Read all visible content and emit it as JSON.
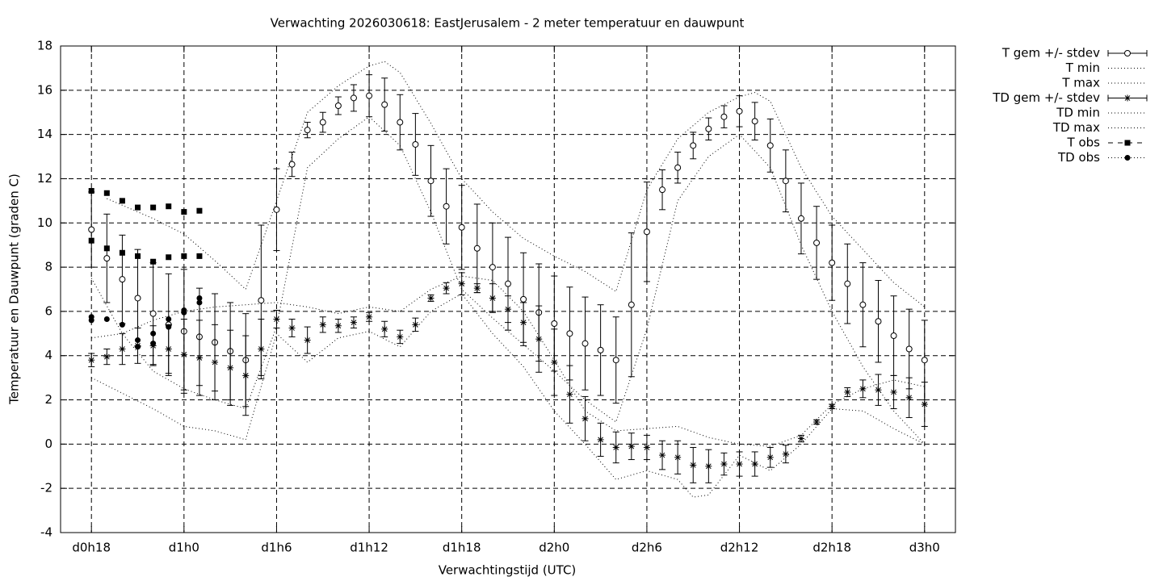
{
  "chart_data": {
    "type": "errorbar",
    "title": "Verwachting 2026030618: EastJerusalem - 2 meter temperatuur en dauwpunt",
    "xlabel": "Verwachtingstijd (UTC)",
    "ylabel": "Temperatuur en Dauwpunt (graden C)",
    "xlim": [
      -2,
      56
    ],
    "xticks": [
      {
        "value": 0,
        "label": "d0h18"
      },
      {
        "value": 6,
        "label": "d1h0"
      },
      {
        "value": 12,
        "label": "d1h6"
      },
      {
        "value": 18,
        "label": "d1h12"
      },
      {
        "value": 24,
        "label": "d1h18"
      },
      {
        "value": 30,
        "label": "d2h0"
      },
      {
        "value": 36,
        "label": "d2h6"
      },
      {
        "value": 42,
        "label": "d2h12"
      },
      {
        "value": 48,
        "label": "d2h18"
      },
      {
        "value": 54,
        "label": "d3h0"
      }
    ],
    "ylim": [
      -4,
      18
    ],
    "yticks": [
      -4,
      -2,
      0,
      2,
      4,
      6,
      8,
      10,
      12,
      14,
      16,
      18
    ],
    "grid": true,
    "legend": "outside-right",
    "series": [
      {
        "name": "T gem +/- stdev",
        "style": "errorbar",
        "marker": "circle",
        "color": "#000000",
        "x": [
          0,
          1,
          2,
          3,
          4,
          5,
          6,
          7,
          8,
          9,
          10,
          11,
          12,
          13,
          14,
          15,
          16,
          17,
          18,
          19,
          20,
          21,
          22,
          23,
          24,
          25,
          26,
          27,
          28,
          29,
          30,
          31,
          32,
          33,
          34,
          35,
          36,
          37,
          38,
          39,
          40,
          41,
          42,
          43,
          44,
          45,
          46,
          47,
          48,
          49,
          50,
          51,
          52,
          53,
          54
        ],
        "values": [
          9.7,
          8.4,
          7.45,
          6.6,
          5.9,
          5.4,
          5.1,
          4.85,
          4.6,
          4.2,
          3.8,
          6.5,
          10.6,
          12.65,
          14.2,
          14.55,
          15.3,
          15.65,
          15.75,
          15.35,
          14.55,
          13.55,
          11.9,
          10.75,
          9.8,
          8.85,
          8.0,
          7.25,
          6.55,
          5.95,
          5.45,
          5.0,
          4.55,
          4.25,
          3.8,
          6.3,
          9.6,
          11.5,
          12.5,
          13.5,
          14.25,
          14.8,
          15.05,
          14.6,
          13.5,
          11.9,
          10.2,
          9.1,
          8.2,
          7.25,
          6.3,
          5.55,
          4.9,
          4.3,
          3.8
        ],
        "errors": [
          1.7,
          2.0,
          2.0,
          2.2,
          2.3,
          2.3,
          2.8,
          2.2,
          2.2,
          2.2,
          2.1,
          3.4,
          1.85,
          0.55,
          0.35,
          0.45,
          0.4,
          0.6,
          0.95,
          1.2,
          1.25,
          1.4,
          1.6,
          1.7,
          1.9,
          2.0,
          2.0,
          2.1,
          2.1,
          2.2,
          2.15,
          2.1,
          2.1,
          2.05,
          1.95,
          3.25,
          2.25,
          0.9,
          0.7,
          0.6,
          0.5,
          0.5,
          0.7,
          0.85,
          1.2,
          1.4,
          1.6,
          1.65,
          1.7,
          1.8,
          1.9,
          1.85,
          1.8,
          1.8,
          1.8
        ]
      },
      {
        "name": "T min",
        "style": "dotted",
        "color": "#000000",
        "x": [
          0,
          2,
          4,
          6,
          8,
          10,
          12,
          14,
          16,
          18,
          20,
          22,
          24,
          26,
          28,
          30,
          32,
          34,
          36,
          38,
          40,
          42,
          44,
          46,
          48,
          50,
          52,
          54
        ],
        "values": [
          7.5,
          5.0,
          3.3,
          2.5,
          2.0,
          1.6,
          5.3,
          12.5,
          13.8,
          14.8,
          13.5,
          10.5,
          7.0,
          5.7,
          4.5,
          3.3,
          2.0,
          1.0,
          5.2,
          11.0,
          13.0,
          14.0,
          12.5,
          9.0,
          6.0,
          3.5,
          1.5,
          0.0
        ]
      },
      {
        "name": "T max",
        "style": "dotted",
        "color": "#000000",
        "x": [
          1,
          2,
          4,
          6,
          8,
          10,
          12,
          14,
          16,
          18,
          19,
          20,
          22,
          24,
          26,
          28,
          30,
          32,
          34,
          36,
          38,
          40,
          42,
          43,
          44,
          46,
          48,
          50,
          52,
          54
        ],
        "values": [
          11.1,
          10.8,
          10.2,
          9.5,
          8.3,
          7.0,
          11.0,
          15.0,
          16.2,
          17.1,
          17.3,
          16.8,
          14.5,
          12.0,
          10.5,
          9.3,
          8.5,
          7.8,
          6.9,
          11.5,
          13.8,
          15.0,
          15.7,
          15.9,
          15.5,
          12.5,
          10.3,
          8.8,
          7.3,
          6.2
        ]
      },
      {
        "name": "TD gem +/- stdev",
        "style": "errorbar",
        "marker": "star",
        "color": "#000000",
        "x": [
          0,
          1,
          2,
          3,
          4,
          5,
          6,
          7,
          8,
          9,
          10,
          11,
          12,
          13,
          14,
          15,
          16,
          17,
          18,
          19,
          20,
          21,
          22,
          23,
          24,
          25,
          26,
          27,
          28,
          29,
          30,
          31,
          32,
          33,
          34,
          35,
          36,
          37,
          38,
          39,
          40,
          41,
          42,
          43,
          44,
          45,
          46,
          47,
          48,
          49,
          50,
          51,
          52,
          53,
          54
        ],
        "values": [
          3.8,
          3.95,
          4.3,
          4.45,
          4.45,
          4.3,
          4.05,
          3.9,
          3.7,
          3.45,
          3.1,
          4.3,
          5.65,
          5.25,
          4.7,
          5.4,
          5.35,
          5.5,
          5.75,
          5.2,
          4.85,
          5.4,
          6.6,
          7.05,
          7.25,
          7.05,
          6.6,
          6.1,
          5.5,
          4.75,
          3.7,
          2.25,
          1.15,
          0.2,
          -0.15,
          -0.1,
          -0.15,
          -0.5,
          -0.6,
          -0.95,
          -1.0,
          -0.9,
          -0.9,
          -0.9,
          -0.6,
          -0.45,
          0.25,
          1.0,
          1.7,
          2.35,
          2.5,
          2.45,
          2.35,
          2.1,
          1.8
        ],
        "errors": [
          0.3,
          0.35,
          0.7,
          0.8,
          0.9,
          1.1,
          1.6,
          1.7,
          1.7,
          1.7,
          1.8,
          1.35,
          0.4,
          0.4,
          0.6,
          0.35,
          0.3,
          0.25,
          0.2,
          0.35,
          0.3,
          0.3,
          0.15,
          0.25,
          0.5,
          0.2,
          0.65,
          0.6,
          0.9,
          1.5,
          1.5,
          1.3,
          1.0,
          0.75,
          0.7,
          0.6,
          0.55,
          0.65,
          0.75,
          0.8,
          0.75,
          0.5,
          0.55,
          0.55,
          0.45,
          0.4,
          0.15,
          0.1,
          0.1,
          0.2,
          0.4,
          0.7,
          0.75,
          0.9,
          1.0
        ]
      },
      {
        "name": "TD min",
        "style": "dotted",
        "color": "#000000",
        "x": [
          0,
          2,
          4,
          6,
          8,
          10,
          12,
          14,
          16,
          18,
          20,
          22,
          24,
          26,
          28,
          30,
          32,
          34,
          36,
          38,
          39,
          40,
          42,
          44,
          46,
          48,
          50,
          52,
          54
        ],
        "values": [
          3.0,
          2.3,
          1.6,
          0.8,
          0.6,
          0.2,
          5.0,
          3.7,
          4.8,
          5.1,
          4.4,
          6.0,
          6.8,
          5.0,
          3.5,
          1.5,
          0.0,
          -1.6,
          -1.2,
          -1.6,
          -2.4,
          -2.3,
          -0.5,
          -1.2,
          0.0,
          1.6,
          1.5,
          0.7,
          0.0
        ]
      },
      {
        "name": "TD max",
        "style": "dotted",
        "color": "#000000",
        "x": [
          0,
          2,
          4,
          6,
          8,
          10,
          12,
          14,
          16,
          18,
          20,
          22,
          24,
          26,
          28,
          30,
          32,
          34,
          36,
          38,
          40,
          42,
          44,
          46,
          48,
          50,
          52,
          54
        ],
        "values": [
          4.8,
          5.0,
          5.6,
          6.0,
          6.2,
          6.3,
          6.4,
          6.2,
          5.9,
          6.2,
          6.0,
          7.0,
          7.6,
          7.4,
          6.0,
          3.8,
          1.5,
          0.6,
          0.7,
          0.8,
          0.3,
          0.0,
          -0.1,
          0.4,
          1.8,
          2.5,
          2.9,
          2.6
        ]
      },
      {
        "name": "T obs",
        "style": "points",
        "marker": "square",
        "color": "#000000",
        "x": [
          0,
          0,
          1,
          1,
          2,
          2,
          3,
          3,
          4,
          4,
          5,
          5,
          6,
          6,
          7,
          7
        ],
        "values": [
          11.45,
          9.2,
          11.35,
          8.85,
          11.0,
          8.65,
          10.7,
          8.5,
          10.7,
          8.25,
          10.75,
          8.45,
          10.5,
          8.5,
          10.55,
          8.5
        ]
      },
      {
        "name": "TD obs",
        "style": "points",
        "marker": "dot",
        "color": "#000000",
        "x": [
          0,
          0,
          1,
          2,
          3,
          3,
          4,
          4,
          5,
          5,
          6,
          6,
          7,
          7
        ],
        "values": [
          5.75,
          5.6,
          5.65,
          5.4,
          4.7,
          4.4,
          5.0,
          4.55,
          5.65,
          5.3,
          6.05,
          5.95,
          6.6,
          6.4
        ]
      }
    ]
  }
}
